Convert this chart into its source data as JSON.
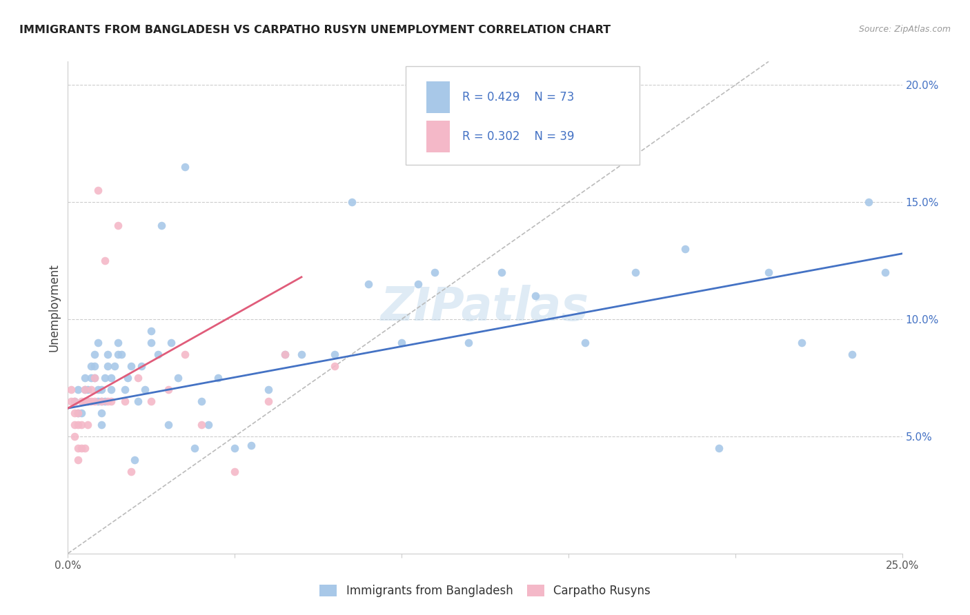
{
  "title": "IMMIGRANTS FROM BANGLADESH VS CARPATHO RUSYN UNEMPLOYMENT CORRELATION CHART",
  "source": "Source: ZipAtlas.com",
  "ylabel": "Unemployment",
  "xlim": [
    0.0,
    0.25
  ],
  "ylim": [
    0.0,
    0.21
  ],
  "legend_r1": "R = 0.429",
  "legend_n1": "N = 73",
  "legend_r2": "R = 0.302",
  "legend_n2": "N = 39",
  "color_blue": "#a8c8e8",
  "color_pink": "#f4b8c8",
  "color_blue_text": "#4472c4",
  "color_pink_text": "#e05c7a",
  "watermark": "ZIPatlas",
  "blue_scatter_x": [
    0.002,
    0.003,
    0.003,
    0.004,
    0.005,
    0.005,
    0.005,
    0.006,
    0.006,
    0.007,
    0.007,
    0.008,
    0.008,
    0.008,
    0.009,
    0.009,
    0.009,
    0.01,
    0.01,
    0.01,
    0.01,
    0.011,
    0.011,
    0.012,
    0.012,
    0.013,
    0.013,
    0.014,
    0.015,
    0.015,
    0.016,
    0.017,
    0.018,
    0.019,
    0.02,
    0.021,
    0.022,
    0.023,
    0.025,
    0.025,
    0.027,
    0.028,
    0.03,
    0.031,
    0.033,
    0.035,
    0.038,
    0.04,
    0.042,
    0.045,
    0.05,
    0.055,
    0.06,
    0.065,
    0.07,
    0.08,
    0.085,
    0.09,
    0.1,
    0.105,
    0.11,
    0.12,
    0.13,
    0.14,
    0.155,
    0.17,
    0.185,
    0.195,
    0.21,
    0.22,
    0.235,
    0.245,
    0.24
  ],
  "blue_scatter_y": [
    0.065,
    0.06,
    0.07,
    0.06,
    0.065,
    0.07,
    0.075,
    0.065,
    0.07,
    0.075,
    0.08,
    0.075,
    0.08,
    0.085,
    0.065,
    0.07,
    0.09,
    0.055,
    0.06,
    0.065,
    0.07,
    0.065,
    0.075,
    0.08,
    0.085,
    0.07,
    0.075,
    0.08,
    0.085,
    0.09,
    0.085,
    0.07,
    0.075,
    0.08,
    0.04,
    0.065,
    0.08,
    0.07,
    0.09,
    0.095,
    0.085,
    0.14,
    0.055,
    0.09,
    0.075,
    0.165,
    0.045,
    0.065,
    0.055,
    0.075,
    0.045,
    0.046,
    0.07,
    0.085,
    0.085,
    0.085,
    0.15,
    0.115,
    0.09,
    0.115,
    0.12,
    0.09,
    0.12,
    0.11,
    0.09,
    0.12,
    0.13,
    0.045,
    0.12,
    0.09,
    0.085,
    0.12,
    0.15
  ],
  "pink_scatter_x": [
    0.001,
    0.001,
    0.002,
    0.002,
    0.002,
    0.002,
    0.003,
    0.003,
    0.003,
    0.003,
    0.004,
    0.004,
    0.004,
    0.005,
    0.005,
    0.005,
    0.006,
    0.006,
    0.007,
    0.007,
    0.008,
    0.008,
    0.009,
    0.01,
    0.011,
    0.012,
    0.013,
    0.015,
    0.017,
    0.019,
    0.021,
    0.025,
    0.03,
    0.035,
    0.04,
    0.05,
    0.06,
    0.065,
    0.08
  ],
  "pink_scatter_y": [
    0.065,
    0.07,
    0.05,
    0.055,
    0.06,
    0.065,
    0.04,
    0.045,
    0.055,
    0.06,
    0.045,
    0.055,
    0.065,
    0.045,
    0.065,
    0.07,
    0.055,
    0.065,
    0.065,
    0.07,
    0.065,
    0.075,
    0.155,
    0.065,
    0.125,
    0.065,
    0.065,
    0.14,
    0.065,
    0.035,
    0.075,
    0.065,
    0.07,
    0.085,
    0.055,
    0.035,
    0.065,
    0.085,
    0.08
  ],
  "blue_line_x": [
    0.0,
    0.25
  ],
  "blue_line_y_start": 0.062,
  "blue_line_y_end": 0.128,
  "pink_line_x": [
    0.0,
    0.07
  ],
  "pink_line_y_start": 0.062,
  "pink_line_y_end": 0.118,
  "diagonal_line_x": [
    0.0,
    0.21
  ],
  "diagonal_line_y_start": 0.0,
  "diagonal_line_y_end": 0.21
}
